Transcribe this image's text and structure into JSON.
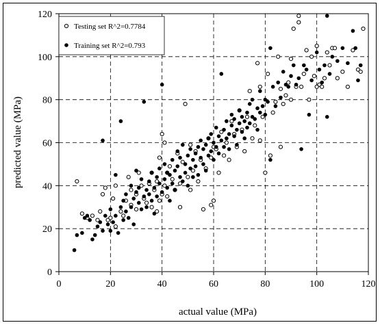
{
  "chart_data": {
    "type": "scatter",
    "title": "",
    "xlabel": "actual value (MPa)",
    "ylabel": "predicted value (MPa)",
    "xlim": [
      0,
      120
    ],
    "ylim": [
      0,
      120
    ],
    "xticks": [
      0,
      20,
      40,
      60,
      80,
      100,
      120
    ],
    "yticks": [
      0,
      20,
      40,
      60,
      80,
      100,
      120
    ],
    "grid": "dashed",
    "legend_position": "top-left",
    "series": [
      {
        "name": "Testing set R^2=0.7784",
        "marker": "open-circle",
        "points": [
          [
            7,
            42
          ],
          [
            9,
            27
          ],
          [
            11,
            25
          ],
          [
            13,
            26
          ],
          [
            15,
            24
          ],
          [
            16,
            28
          ],
          [
            17,
            36
          ],
          [
            18,
            39
          ],
          [
            19,
            24
          ],
          [
            20,
            25
          ],
          [
            21,
            34
          ],
          [
            22,
            40
          ],
          [
            22,
            21
          ],
          [
            24,
            28
          ],
          [
            25,
            26
          ],
          [
            26,
            33
          ],
          [
            27,
            44
          ],
          [
            28,
            31
          ],
          [
            28,
            38
          ],
          [
            30,
            29
          ],
          [
            30,
            36
          ],
          [
            31,
            46
          ],
          [
            32,
            40
          ],
          [
            33,
            34
          ],
          [
            34,
            32
          ],
          [
            35,
            41
          ],
          [
            36,
            46
          ],
          [
            36,
            30
          ],
          [
            37,
            38
          ],
          [
            38,
            42
          ],
          [
            38,
            28
          ],
          [
            39,
            53
          ],
          [
            39,
            33
          ],
          [
            40,
            64
          ],
          [
            40,
            36
          ],
          [
            41,
            40
          ],
          [
            41,
            60
          ],
          [
            42,
            46
          ],
          [
            42,
            35
          ],
          [
            43,
            49
          ],
          [
            44,
            43
          ],
          [
            45,
            38
          ],
          [
            46,
            55
          ],
          [
            47,
            41
          ],
          [
            47,
            30
          ],
          [
            48,
            51
          ],
          [
            49,
            78
          ],
          [
            50,
            44
          ],
          [
            51,
            59
          ],
          [
            51,
            38
          ],
          [
            52,
            47
          ],
          [
            53,
            56
          ],
          [
            54,
            42
          ],
          [
            55,
            52
          ],
          [
            56,
            29
          ],
          [
            57,
            48
          ],
          [
            58,
            62
          ],
          [
            59,
            53
          ],
          [
            59,
            31
          ],
          [
            60,
            58
          ],
          [
            60,
            33
          ],
          [
            61,
            57
          ],
          [
            62,
            46
          ],
          [
            63,
            65
          ],
          [
            64,
            54
          ],
          [
            65,
            60
          ],
          [
            66,
            52
          ],
          [
            67,
            70
          ],
          [
            68,
            64
          ],
          [
            69,
            58
          ],
          [
            70,
            75
          ],
          [
            71,
            66
          ],
          [
            72,
            56
          ],
          [
            73,
            72
          ],
          [
            74,
            84
          ],
          [
            75,
            62
          ],
          [
            76,
            68
          ],
          [
            77,
            97
          ],
          [
            78,
            86
          ],
          [
            78,
            61
          ],
          [
            79,
            72
          ],
          [
            80,
            46
          ],
          [
            81,
            92
          ],
          [
            82,
            54
          ],
          [
            83,
            74
          ],
          [
            84,
            79
          ],
          [
            85,
            100
          ],
          [
            86,
            85
          ],
          [
            86,
            58
          ],
          [
            87,
            78
          ],
          [
            88,
            82
          ],
          [
            89,
            88
          ],
          [
            90,
            99
          ],
          [
            90,
            80
          ],
          [
            91,
            113
          ],
          [
            92,
            86
          ],
          [
            93,
            116
          ],
          [
            94,
            86
          ],
          [
            95,
            92
          ],
          [
            96,
            103
          ],
          [
            97,
            80
          ],
          [
            98,
            100
          ],
          [
            100,
            86
          ],
          [
            100,
            105
          ],
          [
            101,
            87
          ],
          [
            102,
            86
          ],
          [
            103,
            90
          ],
          [
            104,
            102
          ],
          [
            105,
            96
          ],
          [
            106,
            104
          ],
          [
            107,
            104
          ],
          [
            108,
            90
          ],
          [
            110,
            93
          ],
          [
            112,
            86
          ],
          [
            114,
            103
          ],
          [
            116,
            94
          ],
          [
            117,
            93
          ],
          [
            93,
            119
          ],
          [
            118,
            113
          ],
          [
            99,
            91
          ]
        ]
      },
      {
        "name": "Training set R^2=0.793",
        "marker": "filled-circle",
        "points": [
          [
            6,
            10
          ],
          [
            7,
            17
          ],
          [
            9,
            18
          ],
          [
            10,
            25
          ],
          [
            11,
            26
          ],
          [
            12,
            24
          ],
          [
            13,
            15
          ],
          [
            14,
            17
          ],
          [
            15,
            21
          ],
          [
            16,
            23
          ],
          [
            17,
            19
          ],
          [
            17,
            61
          ],
          [
            18,
            26
          ],
          [
            19,
            22
          ],
          [
            20,
            19
          ],
          [
            20,
            29
          ],
          [
            21,
            23
          ],
          [
            22,
            26
          ],
          [
            22,
            45
          ],
          [
            23,
            18
          ],
          [
            24,
            30
          ],
          [
            24,
            70
          ],
          [
            25,
            33
          ],
          [
            25,
            24
          ],
          [
            26,
            36
          ],
          [
            26,
            28
          ],
          [
            27,
            25
          ],
          [
            28,
            30
          ],
          [
            28,
            40
          ],
          [
            29,
            34
          ],
          [
            29,
            22
          ],
          [
            30,
            37
          ],
          [
            30,
            47
          ],
          [
            31,
            32
          ],
          [
            31,
            39
          ],
          [
            32,
            29
          ],
          [
            32,
            43
          ],
          [
            33,
            35
          ],
          [
            33,
            79
          ],
          [
            34,
            38
          ],
          [
            34,
            30
          ],
          [
            35,
            42
          ],
          [
            35,
            36
          ],
          [
            36,
            33
          ],
          [
            36,
            46
          ],
          [
            37,
            39
          ],
          [
            37,
            27
          ],
          [
            38,
            44
          ],
          [
            38,
            35
          ],
          [
            39,
            41
          ],
          [
            39,
            48
          ],
          [
            40,
            37
          ],
          [
            40,
            87
          ],
          [
            41,
            43
          ],
          [
            41,
            50
          ],
          [
            42,
            39
          ],
          [
            42,
            46
          ],
          [
            43,
            45
          ],
          [
            43,
            33
          ],
          [
            44,
            52
          ],
          [
            44,
            41
          ],
          [
            45,
            47
          ],
          [
            45,
            38
          ],
          [
            46,
            49
          ],
          [
            46,
            56
          ],
          [
            47,
            44
          ],
          [
            47,
            53
          ],
          [
            48,
            42
          ],
          [
            48,
            59
          ],
          [
            49,
            50
          ],
          [
            49,
            46
          ],
          [
            50,
            54
          ],
          [
            50,
            40
          ],
          [
            51,
            48
          ],
          [
            51,
            57
          ],
          [
            52,
            52
          ],
          [
            52,
            44
          ],
          [
            53,
            55
          ],
          [
            53,
            49
          ],
          [
            54,
            58
          ],
          [
            54,
            45
          ],
          [
            55,
            53
          ],
          [
            55,
            61
          ],
          [
            56,
            50
          ],
          [
            56,
            57
          ],
          [
            57,
            59
          ],
          [
            57,
            47
          ],
          [
            58,
            62
          ],
          [
            58,
            54
          ],
          [
            59,
            56
          ],
          [
            59,
            64
          ],
          [
            60,
            60
          ],
          [
            60,
            52
          ],
          [
            61,
            67
          ],
          [
            61,
            58
          ],
          [
            62,
            55
          ],
          [
            62,
            63
          ],
          [
            63,
            61
          ],
          [
            63,
            92
          ],
          [
            64,
            66
          ],
          [
            64,
            58
          ],
          [
            65,
            62
          ],
          [
            65,
            70
          ],
          [
            66,
            64
          ],
          [
            66,
            57
          ],
          [
            67,
            68
          ],
          [
            67,
            73
          ],
          [
            68,
            63
          ],
          [
            68,
            71
          ],
          [
            69,
            66
          ],
          [
            69,
            59
          ],
          [
            70,
            69
          ],
          [
            70,
            75
          ],
          [
            71,
            65
          ],
          [
            71,
            72
          ],
          [
            72,
            70
          ],
          [
            72,
            62
          ],
          [
            73,
            74
          ],
          [
            73,
            67
          ],
          [
            74,
            78
          ],
          [
            74,
            69
          ],
          [
            75,
            72
          ],
          [
            75,
            80
          ],
          [
            76,
            71
          ],
          [
            77,
            76
          ],
          [
            77,
            66
          ],
          [
            78,
            74
          ],
          [
            78,
            84
          ],
          [
            79,
            77
          ],
          [
            80,
            73
          ],
          [
            80,
            80
          ],
          [
            81,
            79
          ],
          [
            82,
            52
          ],
          [
            82,
            104
          ],
          [
            83,
            86
          ],
          [
            84,
            77
          ],
          [
            85,
            88
          ],
          [
            86,
            81
          ],
          [
            87,
            93
          ],
          [
            88,
            87
          ],
          [
            89,
            86
          ],
          [
            90,
            91
          ],
          [
            91,
            96
          ],
          [
            92,
            87
          ],
          [
            93,
            90
          ],
          [
            94,
            57
          ],
          [
            95,
            96
          ],
          [
            96,
            94
          ],
          [
            97,
            73
          ],
          [
            98,
            89
          ],
          [
            100,
            102
          ],
          [
            101,
            94
          ],
          [
            102,
            88
          ],
          [
            103,
            96
          ],
          [
            104,
            119
          ],
          [
            104,
            72
          ],
          [
            105,
            92
          ],
          [
            106,
            100
          ],
          [
            108,
            98
          ],
          [
            110,
            104
          ],
          [
            112,
            97
          ],
          [
            114,
            112
          ],
          [
            115,
            104
          ],
          [
            116,
            89
          ],
          [
            117,
            96
          ]
        ]
      }
    ]
  }
}
